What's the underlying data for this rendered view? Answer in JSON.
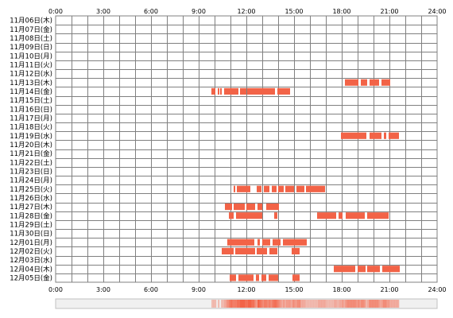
{
  "chart_data": {
    "type": "timeline-heatmap",
    "title": "",
    "xlabel": "",
    "ylabel": "",
    "x_unit": "hour of day",
    "xlim": [
      0,
      24
    ],
    "x_ticks": [
      0,
      3,
      6,
      9,
      12,
      15,
      18,
      21,
      24
    ],
    "x_tick_labels": [
      "0:00",
      "3:00",
      "6:00",
      "9:00",
      "12:00",
      "15:00",
      "18:00",
      "21:00",
      "24:00"
    ],
    "grid": true,
    "colors": {
      "bar": "#f26347",
      "bar_light": "#fcc2b3",
      "grid": "#808080",
      "stripe_track": "#f0f0f0"
    },
    "rows": [
      {
        "label": "11月06日(木)",
        "segments": []
      },
      {
        "label": "11月07日(金)",
        "segments": []
      },
      {
        "label": "11月08日(土)",
        "segments": []
      },
      {
        "label": "11月09日(日)",
        "segments": []
      },
      {
        "label": "11月10日(月)",
        "segments": []
      },
      {
        "label": "11月11日(火)",
        "segments": []
      },
      {
        "label": "11月12日(水)",
        "segments": []
      },
      {
        "label": "11月13日(木)",
        "segments": [
          [
            18.2,
            19.05
          ],
          [
            19.2,
            19.6
          ],
          [
            19.75,
            20.35
          ],
          [
            20.5,
            21.05
          ]
        ]
      },
      {
        "label": "11月14日(金)",
        "segments": [
          [
            9.8,
            10.05
          ],
          [
            10.2,
            10.3
          ],
          [
            10.35,
            10.45
          ],
          [
            10.6,
            11.5
          ],
          [
            11.6,
            12.0
          ],
          [
            12.05,
            13.8
          ],
          [
            13.95,
            14.75
          ]
        ]
      },
      {
        "label": "11月15日(土)",
        "segments": []
      },
      {
        "label": "11月16日(日)",
        "segments": []
      },
      {
        "label": "11月17日(月)",
        "segments": []
      },
      {
        "label": "11月18日(火)",
        "segments": []
      },
      {
        "label": "11月19日(水)",
        "segments": [
          [
            17.95,
            19.55
          ],
          [
            19.75,
            20.5
          ],
          [
            20.65,
            20.8
          ],
          [
            20.95,
            21.6
          ]
        ]
      },
      {
        "label": "11月20日(木)",
        "segments": []
      },
      {
        "label": "11月21日(金)",
        "segments": []
      },
      {
        "label": "11月22日(土)",
        "segments": []
      },
      {
        "label": "11月23日(日)",
        "segments": []
      },
      {
        "label": "11月24日(月)",
        "segments": []
      },
      {
        "label": "11月25日(火)",
        "segments": [
          [
            11.2,
            11.3
          ],
          [
            11.4,
            12.25
          ],
          [
            12.65,
            12.95
          ],
          [
            13.1,
            13.45
          ],
          [
            13.6,
            13.9
          ],
          [
            14.0,
            14.35
          ],
          [
            14.45,
            15.0
          ],
          [
            15.15,
            15.65
          ],
          [
            15.75,
            16.95
          ]
        ]
      },
      {
        "label": "11月26日(水)",
        "segments": []
      },
      {
        "label": "11月27日(木)",
        "segments": [
          [
            10.65,
            11.1
          ],
          [
            11.2,
            11.9
          ],
          [
            12.0,
            12.55
          ],
          [
            12.7,
            13.0
          ],
          [
            13.25,
            14.05
          ]
        ]
      },
      {
        "label": "11月28日(金)",
        "segments": [
          [
            10.9,
            11.2
          ],
          [
            11.35,
            13.0
          ],
          [
            13.75,
            13.95
          ],
          [
            16.45,
            17.65
          ],
          [
            17.8,
            18.05
          ],
          [
            18.25,
            19.45
          ],
          [
            19.6,
            20.95
          ]
        ]
      },
      {
        "label": "11月29日(土)",
        "segments": []
      },
      {
        "label": "11月30日(日)",
        "segments": []
      },
      {
        "label": "12月01日(月)",
        "segments": [
          [
            10.8,
            12.5
          ],
          [
            12.7,
            12.85
          ],
          [
            13.0,
            13.5
          ],
          [
            13.65,
            14.15
          ],
          [
            14.3,
            15.8
          ]
        ]
      },
      {
        "label": "12月02日(火)",
        "segments": [
          [
            10.45,
            11.2
          ],
          [
            11.3,
            12.55
          ],
          [
            12.65,
            13.3
          ],
          [
            13.45,
            13.95
          ],
          [
            14.85,
            15.35
          ]
        ]
      },
      {
        "label": "12月03日(水)",
        "segments": []
      },
      {
        "label": "12月04日(木)",
        "segments": [
          [
            17.5,
            18.85
          ],
          [
            19.0,
            19.5
          ],
          [
            19.6,
            20.4
          ],
          [
            20.55,
            21.65
          ]
        ]
      },
      {
        "label": "12月05日(金)",
        "segments": [
          [
            10.95,
            11.35
          ],
          [
            11.5,
            12.45
          ],
          [
            12.6,
            12.8
          ],
          [
            12.95,
            13.25
          ],
          [
            13.4,
            14.0
          ],
          [
            14.9,
            15.35
          ]
        ]
      }
    ]
  }
}
